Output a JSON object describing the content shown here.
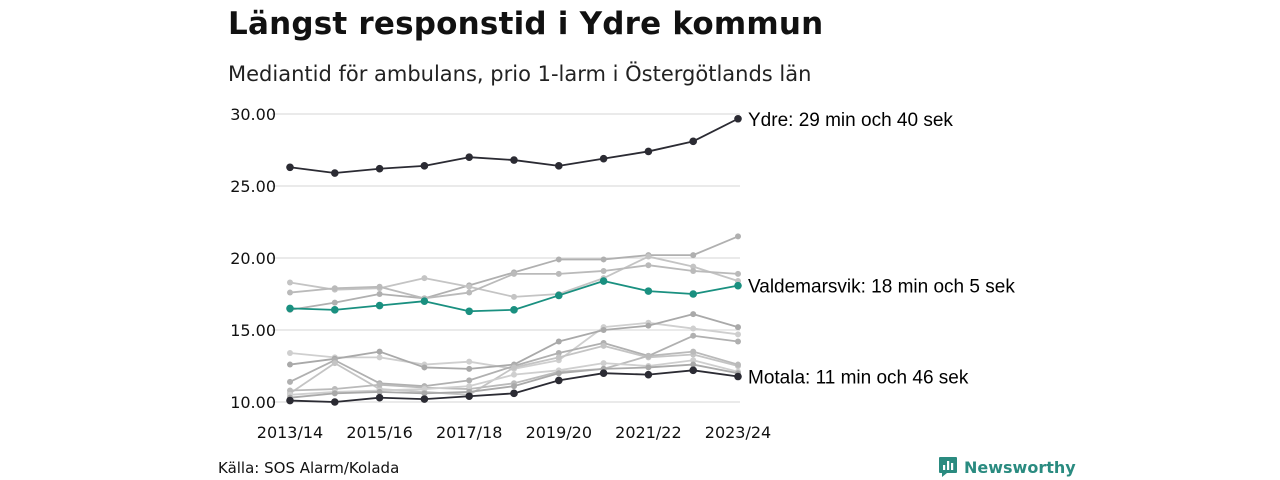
{
  "title": "Längst responstid i Ydre kommun",
  "subtitle": "Mediantid för ambulans, prio 1-larm i Östergötlands län",
  "source": "Källa: SOS Alarm/Kolada",
  "brand": "Newsworthy",
  "colors": {
    "highlight_dark": "#2b2b33",
    "highlight_teal": "#1a9080",
    "background_series": "#b8b8b8",
    "grid": "#dddddd",
    "brand": "#2a8b80"
  },
  "chart_data": {
    "type": "line",
    "title": "Längst responstid i Ydre kommun",
    "subtitle": "Mediantid för ambulans, prio 1-larm i Östergötlands län",
    "x": [
      "2013/14",
      "2014/15",
      "2015/16",
      "2016/17",
      "2017/18",
      "2018/19",
      "2019/20",
      "2020/21",
      "2021/22",
      "2022/23",
      "2023/24"
    ],
    "x_tick_labels": [
      "2013/14",
      "2015/16",
      "2017/18",
      "2019/20",
      "2021/22",
      "2023/24"
    ],
    "y_tick_labels": [
      "10.00",
      "15.00",
      "20.00",
      "25.00",
      "30.00"
    ],
    "ylim": [
      10,
      30
    ],
    "grid": true,
    "highlighted": [
      {
        "name": "Ydre",
        "label": "Ydre: 29 min och 40 sek",
        "color": "#2b2b33",
        "values": [
          26.3,
          25.9,
          26.2,
          26.4,
          27.0,
          26.8,
          26.4,
          26.9,
          27.4,
          28.1,
          29.67
        ]
      },
      {
        "name": "Valdemarsvik",
        "label": "Valdemarsvik: 18 min och 5 sek",
        "color": "#1a9080",
        "values": [
          16.5,
          16.4,
          16.7,
          17.0,
          16.3,
          16.4,
          17.4,
          18.4,
          17.7,
          17.5,
          18.08
        ]
      },
      {
        "name": "Motala",
        "label": "Motala: 11 min och 46 sek",
        "color": "#2b2b33",
        "values": [
          10.1,
          10.0,
          10.3,
          10.2,
          10.4,
          10.6,
          11.5,
          12.0,
          11.9,
          12.2,
          11.77
        ]
      }
    ],
    "other_series": [
      [
        16.4,
        16.9,
        17.5,
        17.2,
        18.1,
        19.0,
        19.9,
        19.9,
        20.2,
        20.2,
        21.5
      ],
      [
        18.3,
        17.8,
        17.9,
        18.6,
        18.0,
        17.3,
        17.5,
        18.6,
        20.1,
        19.4,
        18.4
      ],
      [
        17.6,
        17.9,
        18.0,
        17.2,
        17.6,
        18.9,
        18.9,
        19.1,
        19.5,
        19.1,
        18.9
      ],
      [
        13.4,
        13.1,
        13.1,
        12.6,
        12.8,
        12.3,
        12.9,
        15.2,
        15.5,
        15.1,
        14.7
      ],
      [
        12.6,
        13.0,
        13.5,
        12.4,
        12.3,
        12.6,
        14.2,
        15.0,
        15.3,
        16.1,
        15.2
      ],
      [
        11.4,
        12.9,
        11.3,
        11.1,
        11.5,
        12.5,
        13.4,
        14.1,
        13.2,
        14.6,
        14.2
      ],
      [
        10.6,
        12.7,
        10.9,
        10.7,
        10.5,
        12.4,
        13.1,
        13.9,
        13.1,
        13.3,
        12.5
      ],
      [
        10.8,
        10.9,
        11.2,
        11.0,
        10.9,
        11.3,
        12.1,
        12.3,
        13.2,
        13.5,
        12.6
      ],
      [
        10.5,
        10.7,
        10.8,
        10.9,
        11.1,
        11.9,
        12.2,
        12.7,
        12.5,
        12.9,
        12.1
      ],
      [
        10.3,
        10.6,
        10.7,
        10.6,
        10.7,
        11.1,
        12.0,
        12.3,
        12.4,
        12.6,
        12.0
      ]
    ]
  }
}
